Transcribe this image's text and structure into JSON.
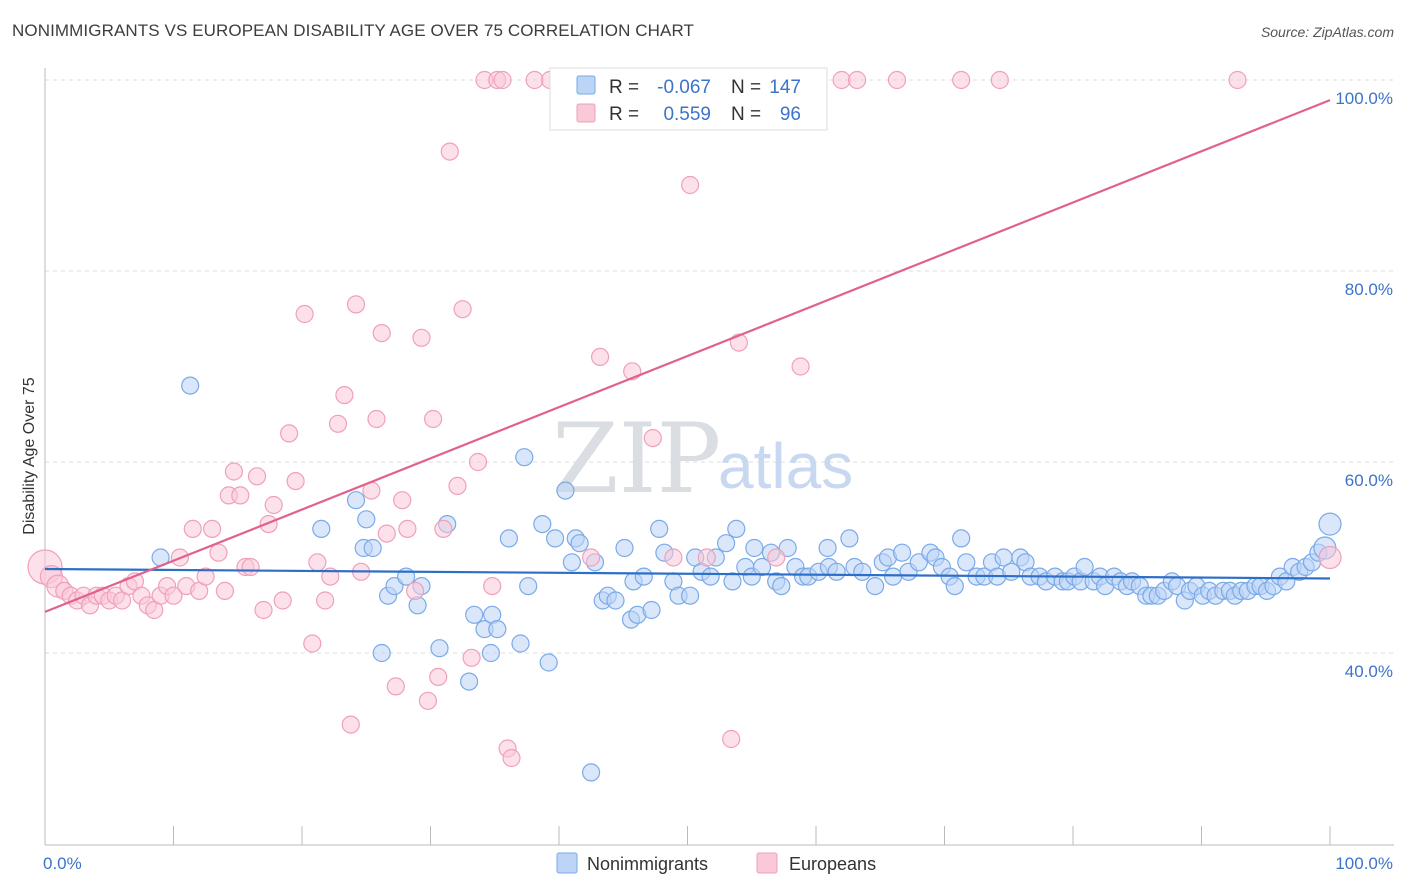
{
  "title": "NONIMMIGRANTS VS EUROPEAN DISABILITY AGE OVER 75 CORRELATION CHART",
  "source": "Source: ZipAtlas.com",
  "watermark": {
    "zip": "ZIP",
    "atlas": "atlas"
  },
  "chart_data": {
    "type": "scatter",
    "title": "NONIMMIGRANTS VS EUROPEAN DISABILITY AGE OVER 75 CORRELATION CHART",
    "xlabel": "",
    "ylabel": "Disability Age Over 75",
    "xlim": [
      0,
      100
    ],
    "ylim": [
      18,
      101
    ],
    "x_tick_labels": [
      "0.0%",
      "100.0%"
    ],
    "y_ticks": [
      {
        "value": 40,
        "label": "40.0%"
      },
      {
        "value": 60,
        "label": "60.0%"
      },
      {
        "value": 80,
        "label": "80.0%"
      },
      {
        "value": 100,
        "label": "100.0%"
      }
    ],
    "grid": "horizontal dashed",
    "legend_position": "top-center",
    "series": [
      {
        "name": "Nonimmigrants",
        "color": "#7aaae8",
        "fill": "#bcd4f5",
        "line_color": "#2d6fc7",
        "R": "-0.067",
        "N": "147",
        "trend": {
          "x": [
            0,
            100
          ],
          "y": [
            48.8,
            47.8
          ]
        },
        "points": [
          [
            9,
            50
          ],
          [
            11.3,
            68
          ],
          [
            21.5,
            53
          ],
          [
            24.2,
            56
          ],
          [
            24.8,
            51
          ],
          [
            25,
            54
          ],
          [
            25.5,
            51
          ],
          [
            26.2,
            40
          ],
          [
            26.7,
            46
          ],
          [
            27.2,
            47
          ],
          [
            28.1,
            48
          ],
          [
            29,
            45
          ],
          [
            29.3,
            47
          ],
          [
            30.7,
            40.5
          ],
          [
            31.3,
            53.5
          ],
          [
            33,
            37
          ],
          [
            33.4,
            44
          ],
          [
            34.2,
            42.5
          ],
          [
            34.7,
            40
          ],
          [
            34.8,
            44
          ],
          [
            35.2,
            42.5
          ],
          [
            36.1,
            52
          ],
          [
            37,
            41
          ],
          [
            37.3,
            60.5
          ],
          [
            37.6,
            47
          ],
          [
            38.7,
            53.5
          ],
          [
            39.2,
            39
          ],
          [
            39.7,
            52
          ],
          [
            40.5,
            57
          ],
          [
            41,
            49.5
          ],
          [
            41.3,
            52
          ],
          [
            41.6,
            51.5
          ],
          [
            42.5,
            27.5
          ],
          [
            42.8,
            49.5
          ],
          [
            43.4,
            45.5
          ],
          [
            43.8,
            46
          ],
          [
            44.4,
            45.5
          ],
          [
            45.1,
            51
          ],
          [
            45.6,
            43.5
          ],
          [
            45.8,
            47.5
          ],
          [
            46.1,
            44
          ],
          [
            46.6,
            48
          ],
          [
            47.2,
            44.5
          ],
          [
            47.8,
            53
          ],
          [
            48.2,
            50.5
          ],
          [
            48.9,
            47.5
          ],
          [
            49.3,
            46
          ],
          [
            50.2,
            46
          ],
          [
            50.6,
            50
          ],
          [
            51.1,
            48.5
          ],
          [
            51.8,
            48
          ],
          [
            52.2,
            50
          ],
          [
            53,
            51.5
          ],
          [
            53.5,
            47.5
          ],
          [
            53.8,
            53
          ],
          [
            54.5,
            49
          ],
          [
            55,
            48
          ],
          [
            55.2,
            51
          ],
          [
            55.8,
            49
          ],
          [
            56.5,
            50.5
          ],
          [
            56.9,
            47.5
          ],
          [
            57.3,
            47
          ],
          [
            57.8,
            51
          ],
          [
            58.4,
            49
          ],
          [
            59,
            48
          ],
          [
            59.4,
            48
          ],
          [
            60.2,
            48.5
          ],
          [
            60.9,
            51
          ],
          [
            61,
            49
          ],
          [
            61.6,
            48.5
          ],
          [
            62.6,
            52
          ],
          [
            63,
            49
          ],
          [
            63.6,
            48.5
          ],
          [
            64.6,
            47
          ],
          [
            65.2,
            49.5
          ],
          [
            65.6,
            50
          ],
          [
            66,
            48
          ],
          [
            66.7,
            50.5
          ],
          [
            67.2,
            48.5
          ],
          [
            68,
            49.5
          ],
          [
            68.9,
            50.5
          ],
          [
            69.3,
            50
          ],
          [
            69.8,
            49
          ],
          [
            70.4,
            48
          ],
          [
            70.8,
            47
          ],
          [
            71.3,
            52
          ],
          [
            71.7,
            49.5
          ],
          [
            72.5,
            48
          ],
          [
            73.1,
            48
          ],
          [
            73.7,
            49.5
          ],
          [
            74.1,
            48
          ],
          [
            74.6,
            50
          ],
          [
            75.2,
            48.5
          ],
          [
            75.9,
            50
          ],
          [
            76.3,
            49.5
          ],
          [
            76.7,
            48
          ],
          [
            77.4,
            48
          ],
          [
            77.9,
            47.5
          ],
          [
            78.6,
            48
          ],
          [
            79.2,
            47.5
          ],
          [
            79.6,
            47.5
          ],
          [
            80.1,
            48
          ],
          [
            80.6,
            47.5
          ],
          [
            80.9,
            49
          ],
          [
            81.6,
            47.5
          ],
          [
            82.1,
            48
          ],
          [
            82.5,
            47
          ],
          [
            83.2,
            48
          ],
          [
            83.7,
            47.5
          ],
          [
            84.2,
            47
          ],
          [
            84.6,
            47.5
          ],
          [
            85.2,
            47
          ],
          [
            85.7,
            46
          ],
          [
            86.1,
            46
          ],
          [
            86.6,
            46
          ],
          [
            87.1,
            46.5
          ],
          [
            87.7,
            47.5
          ],
          [
            88.1,
            47
          ],
          [
            88.7,
            45.5
          ],
          [
            89.1,
            46.5
          ],
          [
            89.6,
            47
          ],
          [
            90.1,
            46
          ],
          [
            90.6,
            46.5
          ],
          [
            91.1,
            46
          ],
          [
            91.7,
            46.5
          ],
          [
            92.2,
            46.5
          ],
          [
            92.6,
            46
          ],
          [
            93.1,
            46.5
          ],
          [
            93.6,
            46.5
          ],
          [
            94.2,
            47
          ],
          [
            94.6,
            47
          ],
          [
            95.1,
            46.5
          ],
          [
            95.6,
            47
          ],
          [
            96.1,
            48
          ],
          [
            96.6,
            47.5
          ],
          [
            97.1,
            49
          ],
          [
            97.6,
            48.5
          ],
          [
            98.1,
            49
          ],
          [
            98.6,
            49.5
          ],
          [
            99.1,
            50.5
          ],
          [
            99.6,
            51
          ],
          [
            100,
            53.5
          ]
        ]
      },
      {
        "name": "Europeans",
        "color": "#f0a0b8",
        "fill": "#f9c9d8",
        "line_color": "#e0628c",
        "R": "0.559",
        "N": "96",
        "trend": {
          "x": [
            0,
            100
          ],
          "y": [
            44.3,
            97.9
          ]
        },
        "points": [
          [
            0,
            49
          ],
          [
            0.5,
            48
          ],
          [
            1,
            47
          ],
          [
            1.5,
            46.5
          ],
          [
            2,
            46
          ],
          [
            2.5,
            45.5
          ],
          [
            3,
            46
          ],
          [
            3.5,
            45
          ],
          [
            4,
            46
          ],
          [
            4.5,
            46
          ],
          [
            5,
            45.5
          ],
          [
            5.5,
            46
          ],
          [
            6,
            45.5
          ],
          [
            6.5,
            47
          ],
          [
            7,
            47.5
          ],
          [
            7.5,
            46
          ],
          [
            8,
            45
          ],
          [
            8.5,
            44.5
          ],
          [
            9,
            46
          ],
          [
            9.5,
            47
          ],
          [
            10,
            46
          ],
          [
            10.5,
            50
          ],
          [
            11,
            47
          ],
          [
            11.5,
            53
          ],
          [
            12,
            46.5
          ],
          [
            12.5,
            48
          ],
          [
            13,
            53
          ],
          [
            13.5,
            50.5
          ],
          [
            14,
            46.5
          ],
          [
            14.3,
            56.5
          ],
          [
            14.7,
            59
          ],
          [
            15.2,
            56.5
          ],
          [
            15.6,
            49
          ],
          [
            16,
            49
          ],
          [
            16.5,
            58.5
          ],
          [
            17,
            44.5
          ],
          [
            17.4,
            53.5
          ],
          [
            17.8,
            55.5
          ],
          [
            18.5,
            45.5
          ],
          [
            19,
            63
          ],
          [
            19.5,
            58
          ],
          [
            20.2,
            75.5
          ],
          [
            20.8,
            41
          ],
          [
            21.2,
            49.5
          ],
          [
            21.8,
            45.5
          ],
          [
            22.2,
            48
          ],
          [
            22.8,
            64
          ],
          [
            23.3,
            67
          ],
          [
            23.8,
            32.5
          ],
          [
            24.2,
            76.5
          ],
          [
            24.6,
            48.5
          ],
          [
            25.4,
            57
          ],
          [
            25.8,
            64.5
          ],
          [
            26.2,
            73.5
          ],
          [
            26.6,
            52.5
          ],
          [
            27.3,
            36.5
          ],
          [
            27.8,
            56
          ],
          [
            28.2,
            53
          ],
          [
            28.8,
            46.5
          ],
          [
            29.3,
            73
          ],
          [
            29.8,
            35
          ],
          [
            30.2,
            64.5
          ],
          [
            30.6,
            37.5
          ],
          [
            31,
            53
          ],
          [
            31.5,
            92.5
          ],
          [
            32.1,
            57.5
          ],
          [
            32.5,
            76
          ],
          [
            33.2,
            39.5
          ],
          [
            33.7,
            60
          ],
          [
            34.2,
            100
          ],
          [
            34.8,
            47
          ],
          [
            35.2,
            100
          ],
          [
            35.6,
            100
          ],
          [
            36,
            30
          ],
          [
            36.3,
            29
          ],
          [
            38.1,
            100
          ],
          [
            39.3,
            100
          ],
          [
            41.5,
            100
          ],
          [
            42.5,
            50
          ],
          [
            43.2,
            71
          ],
          [
            45.1,
            100
          ],
          [
            45.7,
            69.5
          ],
          [
            47.3,
            62.5
          ],
          [
            48.1,
            100
          ],
          [
            48.9,
            50
          ],
          [
            50.2,
            89
          ],
          [
            51.5,
            50
          ],
          [
            52.8,
            100
          ],
          [
            53.4,
            31
          ],
          [
            54,
            72.5
          ],
          [
            56.9,
            50
          ],
          [
            58.8,
            70
          ],
          [
            62,
            100
          ],
          [
            63.2,
            100
          ],
          [
            66.3,
            100
          ],
          [
            71.3,
            100
          ],
          [
            74.3,
            100
          ],
          [
            92.8,
            100
          ],
          [
            100,
            50
          ]
        ]
      }
    ]
  },
  "legend": {
    "rows": [
      {
        "r_label": "R =",
        "r_value": "-0.067",
        "n_label": "N =",
        "n_value": "147"
      },
      {
        "r_label": "R =",
        "r_value": "0.559",
        "n_label": "N =",
        "n_value": "96"
      }
    ]
  },
  "bottom_legend": [
    "Nonimmigrants",
    "Europeans"
  ]
}
